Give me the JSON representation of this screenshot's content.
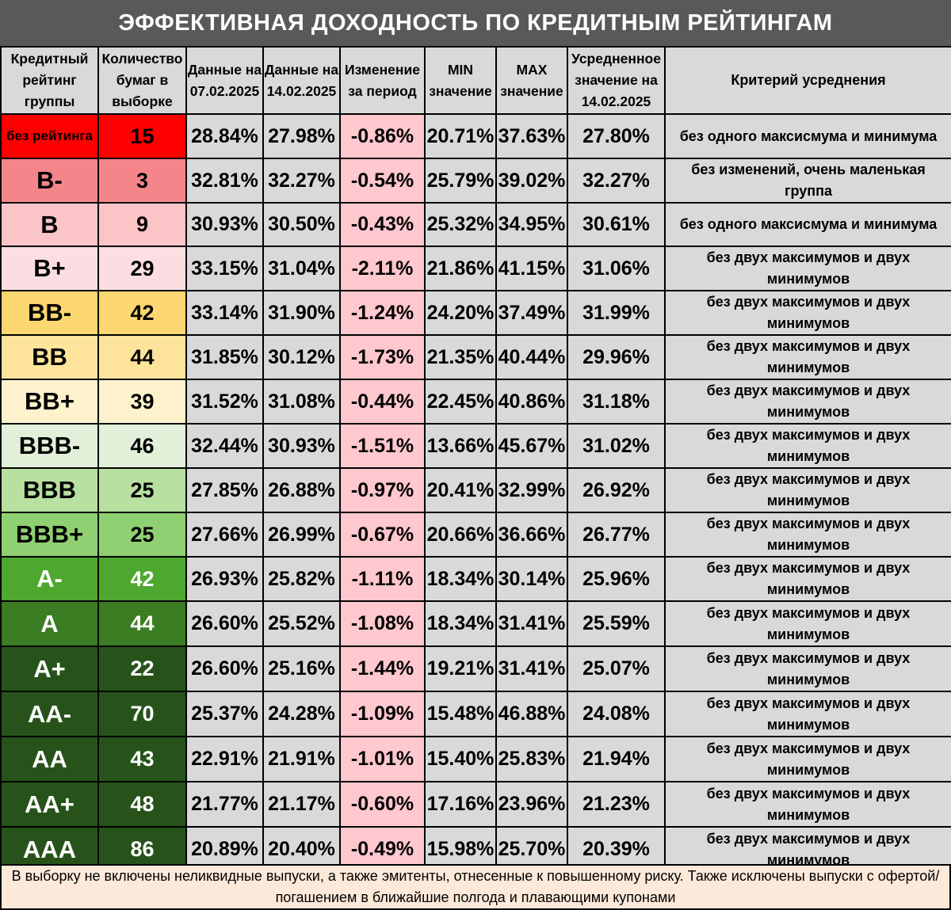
{
  "title": "ЭФФЕКТИВНАЯ ДОХОДНОСТЬ ПО КРЕДИТНЫМ РЕЙТИНГАМ",
  "headers": {
    "rating": "Кредитный рейтинг группы",
    "count": "Количество бумаг в выборке",
    "date1": "Данные на 07.02.2025",
    "date2": "Данные на 14.02.2025",
    "change": "Изменение за период",
    "min": "MIN значение",
    "max": "MAX значение",
    "avg": "Усредненное значение на 14.02.2025",
    "criterion": "Критерий усреднения"
  },
  "colors": {
    "header_bg": "#595959",
    "cell_grey": "#d9d9d9",
    "change_bg": "#ffc7ce",
    "min_text": "#ff0000",
    "max_text": "#00b050",
    "note_bg": "#fde9d9"
  },
  "rows": [
    {
      "rating": "без рейтинга",
      "count": "15",
      "d1": "28.84%",
      "d2": "27.98%",
      "chg": "-0.86%",
      "min": "20.71%",
      "max": "37.63%",
      "avg": "27.80%",
      "crit": "без одного максисмума и минимума",
      "bg": "#ff0000",
      "fg": "#000000",
      "small": true
    },
    {
      "rating": "B-",
      "count": "3",
      "d1": "32.81%",
      "d2": "32.27%",
      "chg": "-0.54%",
      "min": "25.79%",
      "max": "39.02%",
      "avg": "32.27%",
      "crit": "без изменений, очень маленькая группа",
      "bg": "#f4868b",
      "fg": "#000000"
    },
    {
      "rating": "B",
      "count": "9",
      "d1": "30.93%",
      "d2": "30.50%",
      "chg": "-0.43%",
      "min": "25.32%",
      "max": "34.95%",
      "avg": "30.61%",
      "crit": "без одного максисмума и минимума",
      "bg": "#fbc4c6",
      "fg": "#000000"
    },
    {
      "rating": "B+",
      "count": "29",
      "d1": "33.15%",
      "d2": "31.04%",
      "chg": "-2.11%",
      "min": "21.86%",
      "max": "41.15%",
      "avg": "31.06%",
      "crit": "без двух максимумов и двух минимумов",
      "bg": "#fcdee2",
      "fg": "#000000"
    },
    {
      "rating": "BB-",
      "count": "42",
      "d1": "33.14%",
      "d2": "31.90%",
      "chg": "-1.24%",
      "min": "24.20%",
      "max": "37.49%",
      "avg": "31.99%",
      "crit": "без двух максимумов и двух минимумов",
      "bg": "#fcd670",
      "fg": "#000000"
    },
    {
      "rating": "BB",
      "count": "44",
      "d1": "31.85%",
      "d2": "30.12%",
      "chg": "-1.73%",
      "min": "21.35%",
      "max": "40.44%",
      "avg": "29.96%",
      "crit": "без двух максимумов и двух минимумов",
      "bg": "#fde49a",
      "fg": "#000000"
    },
    {
      "rating": "BB+",
      "count": "39",
      "d1": "31.52%",
      "d2": "31.08%",
      "chg": "-0.44%",
      "min": "22.45%",
      "max": "40.86%",
      "avg": "31.18%",
      "crit": "без двух максимумов и двух минимумов",
      "bg": "#fef2cc",
      "fg": "#000000"
    },
    {
      "rating": "BBB-",
      "count": "46",
      "d1": "32.44%",
      "d2": "30.93%",
      "chg": "-1.51%",
      "min": "13.66%",
      "max": "45.67%",
      "avg": "31.02%",
      "crit": "без двух максимумов и двух минимумов",
      "bg": "#e2f0d9",
      "fg": "#000000"
    },
    {
      "rating": "BBB",
      "count": "25",
      "d1": "27.85%",
      "d2": "26.88%",
      "chg": "-0.97%",
      "min": "20.41%",
      "max": "32.99%",
      "avg": "26.92%",
      "crit": "без двух максимумов и двух минимумов",
      "bg": "#b8e0a0",
      "fg": "#000000"
    },
    {
      "rating": "BBB+",
      "count": "25",
      "d1": "27.66%",
      "d2": "26.99%",
      "chg": "-0.67%",
      "min": "20.66%",
      "max": "36.66%",
      "avg": "26.77%",
      "crit": "без двух максимумов и двух минимумов",
      "bg": "#8fd072",
      "fg": "#000000"
    },
    {
      "rating": "A-",
      "count": "42",
      "d1": "26.93%",
      "d2": "25.82%",
      "chg": "-1.11%",
      "min": "18.34%",
      "max": "30.14%",
      "avg": "25.96%",
      "crit": "без двух максимумов и двух минимумов",
      "bg": "#4ea72e",
      "fg": "#ffffff"
    },
    {
      "rating": "A",
      "count": "44",
      "d1": "26.60%",
      "d2": "25.52%",
      "chg": "-1.08%",
      "min": "18.34%",
      "max": "31.41%",
      "avg": "25.59%",
      "crit": "без двух максимумов и двух минимумов",
      "bg": "#3b7d23",
      "fg": "#ffffff"
    },
    {
      "rating": "A+",
      "count": "22",
      "d1": "26.60%",
      "d2": "25.16%",
      "chg": "-1.44%",
      "min": "19.21%",
      "max": "31.41%",
      "avg": "25.07%",
      "crit": "без двух максимумов и двух минимумов",
      "bg": "#27531a",
      "fg": "#ffffff"
    },
    {
      "rating": "AA-",
      "count": "70",
      "d1": "25.37%",
      "d2": "24.28%",
      "chg": "-1.09%",
      "min": "15.48%",
      "max": "46.88%",
      "avg": "24.08%",
      "crit": "без двух максимумов и двух минимумов",
      "bg": "#27531a",
      "fg": "#ffffff"
    },
    {
      "rating": "AA",
      "count": "43",
      "d1": "22.91%",
      "d2": "21.91%",
      "chg": "-1.01%",
      "min": "15.40%",
      "max": "25.83%",
      "avg": "21.94%",
      "crit": "без двух максимумов и двух минимумов",
      "bg": "#27531a",
      "fg": "#ffffff"
    },
    {
      "rating": "AA+",
      "count": "48",
      "d1": "21.77%",
      "d2": "21.17%",
      "chg": "-0.60%",
      "min": "17.16%",
      "max": "23.96%",
      "avg": "21.23%",
      "crit": "без двух максимумов и двух минимумов",
      "bg": "#27531a",
      "fg": "#ffffff"
    },
    {
      "rating": "AAA",
      "count": "86",
      "d1": "20.89%",
      "d2": "20.40%",
      "chg": "-0.49%",
      "min": "15.98%",
      "max": "25.70%",
      "avg": "20.39%",
      "crit": "без двух максимумов и двух минимумов",
      "bg": "#27531a",
      "fg": "#ffffff"
    }
  ],
  "note": "В выборку не включены неликвидные выпуски, а также эмитенты, отнесенные к повышенному риску. Также исключены выпуски с офертой/погашением в ближайшие полгода и плавающими купонами"
}
